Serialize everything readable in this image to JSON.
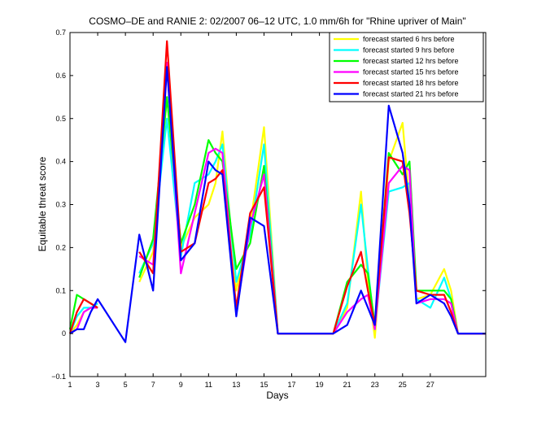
{
  "chart_data": {
    "type": "line",
    "title": "COSMO–DE and RANIE 2: 02/2007 06–12 UTC, 1.0 mm/6h for \"Rhine upriver of Main\"",
    "xlabel": "Days",
    "ylabel": "Equitable threat score",
    "xlim": [
      1,
      31
    ],
    "ylim": [
      -0.1,
      0.7
    ],
    "xticks": [
      "1",
      "3",
      "5",
      "7",
      "9",
      "11",
      "13",
      "15",
      "17",
      "19",
      "21",
      "23",
      "25",
      "27"
    ],
    "yticks": [
      "−0.1",
      "0",
      "0.1",
      "0.2",
      "0.3",
      "0.4",
      "0.5",
      "0.6",
      "0.7"
    ],
    "grid": false,
    "legend_position": "top-right",
    "x": [
      1,
      1.5,
      2,
      2.5,
      3,
      5,
      6,
      7,
      8,
      9,
      10,
      11,
      11.5,
      12,
      13,
      14,
      15,
      16,
      17,
      18,
      19,
      20,
      21,
      22,
      22.5,
      23,
      24,
      25,
      25.5,
      26,
      27,
      28,
      28.5,
      29,
      30,
      31
    ],
    "series": [
      {
        "name": "forecast started  6  hrs before",
        "color": "#ffff00",
        "values": [
          0.0,
          0.02,
          0.05,
          0.06,
          0.07,
          null,
          0.12,
          0.19,
          0.55,
          0.2,
          0.27,
          0.3,
          0.35,
          0.47,
          0.1,
          0.25,
          0.48,
          0.0,
          0.0,
          0.0,
          0.0,
          0.0,
          0.06,
          0.33,
          0.12,
          -0.01,
          0.4,
          0.49,
          0.3,
          0.08,
          0.09,
          0.15,
          0.1,
          0.0,
          0.0,
          0.0
        ]
      },
      {
        "name": "forecast started  9  hrs before",
        "color": "#00ffff",
        "values": [
          0.0,
          0.04,
          0.06,
          0.06,
          0.07,
          null,
          0.14,
          0.21,
          0.5,
          0.18,
          0.35,
          0.37,
          0.4,
          0.44,
          0.12,
          0.23,
          0.44,
          0.0,
          0.0,
          0.0,
          0.0,
          0.0,
          0.07,
          0.3,
          0.15,
          0.01,
          0.33,
          0.34,
          0.35,
          0.08,
          0.06,
          0.13,
          0.08,
          0.0,
          0.0,
          0.0
        ]
      },
      {
        "name": "forecast started  12  hrs before",
        "color": "#00ff00",
        "values": [
          0.01,
          0.09,
          0.08,
          0.07,
          0.06,
          null,
          0.13,
          0.22,
          0.55,
          0.21,
          0.3,
          0.45,
          0.42,
          0.4,
          0.15,
          0.21,
          0.39,
          0.0,
          0.0,
          0.0,
          0.0,
          0.0,
          0.12,
          0.16,
          0.14,
          0.02,
          0.42,
          0.37,
          0.4,
          0.1,
          0.1,
          0.1,
          0.08,
          0.0,
          0.0,
          0.0
        ]
      },
      {
        "name": "forecast started  15  hrs before",
        "color": "#ff00ff",
        "values": [
          0.0,
          0.01,
          0.05,
          0.06,
          0.06,
          null,
          0.18,
          0.16,
          0.63,
          0.14,
          0.28,
          0.42,
          0.43,
          0.42,
          0.05,
          0.25,
          0.37,
          0.0,
          0.0,
          0.0,
          0.0,
          0.0,
          0.05,
          0.08,
          0.09,
          0.01,
          0.35,
          0.39,
          0.38,
          0.07,
          0.08,
          0.08,
          0.07,
          0.0,
          0.0,
          0.0
        ]
      },
      {
        "name": "forecast started  18  hrs before",
        "color": "#ff0000",
        "values": [
          0.0,
          0.05,
          0.08,
          0.07,
          0.06,
          null,
          0.19,
          0.14,
          0.68,
          0.19,
          0.21,
          0.35,
          0.36,
          0.38,
          0.06,
          0.28,
          0.34,
          0.0,
          0.0,
          0.0,
          0.0,
          0.0,
          0.11,
          0.19,
          0.1,
          0.02,
          0.41,
          0.4,
          0.28,
          0.1,
          0.09,
          0.09,
          0.05,
          0.0,
          0.0,
          0.0
        ]
      },
      {
        "name": "forecast started  21  hrs before",
        "color": "#0000ff",
        "values": [
          0.0,
          0.01,
          0.01,
          0.05,
          0.08,
          -0.02,
          0.23,
          0.1,
          0.62,
          0.17,
          0.21,
          0.4,
          0.38,
          0.37,
          0.04,
          0.27,
          0.25,
          0.0,
          0.0,
          0.0,
          0.0,
          0.0,
          0.02,
          0.1,
          0.06,
          0.02,
          0.53,
          0.42,
          0.3,
          0.07,
          0.09,
          0.07,
          0.04,
          0.0,
          0.0,
          0.0
        ]
      }
    ]
  }
}
